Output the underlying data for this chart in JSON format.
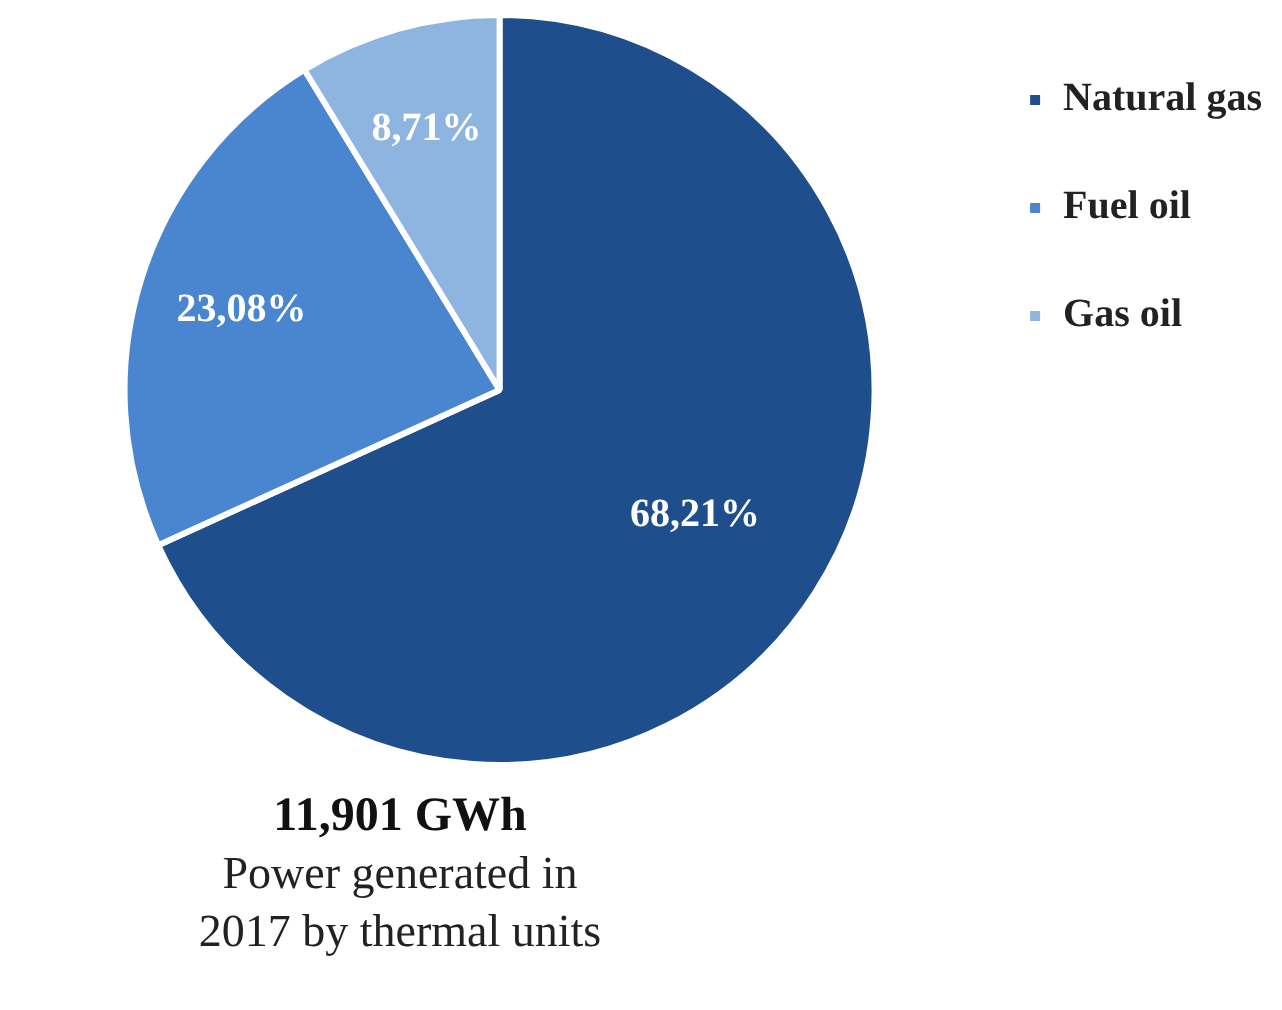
{
  "chart_data": {
    "type": "pie",
    "title": "11,901 GWh",
    "subtitle": "Power generated in 2017 by thermal units",
    "categories": [
      "Natural gas",
      "Fuel oil",
      "Gas oil"
    ],
    "values": [
      68.21,
      23.08,
      8.71
    ],
    "colors": [
      "#1f4e8c",
      "#4a86d0",
      "#8eb4e0"
    ],
    "value_labels": [
      "68,21%",
      "23,08%",
      "8,71%"
    ],
    "legend": "right"
  }
}
